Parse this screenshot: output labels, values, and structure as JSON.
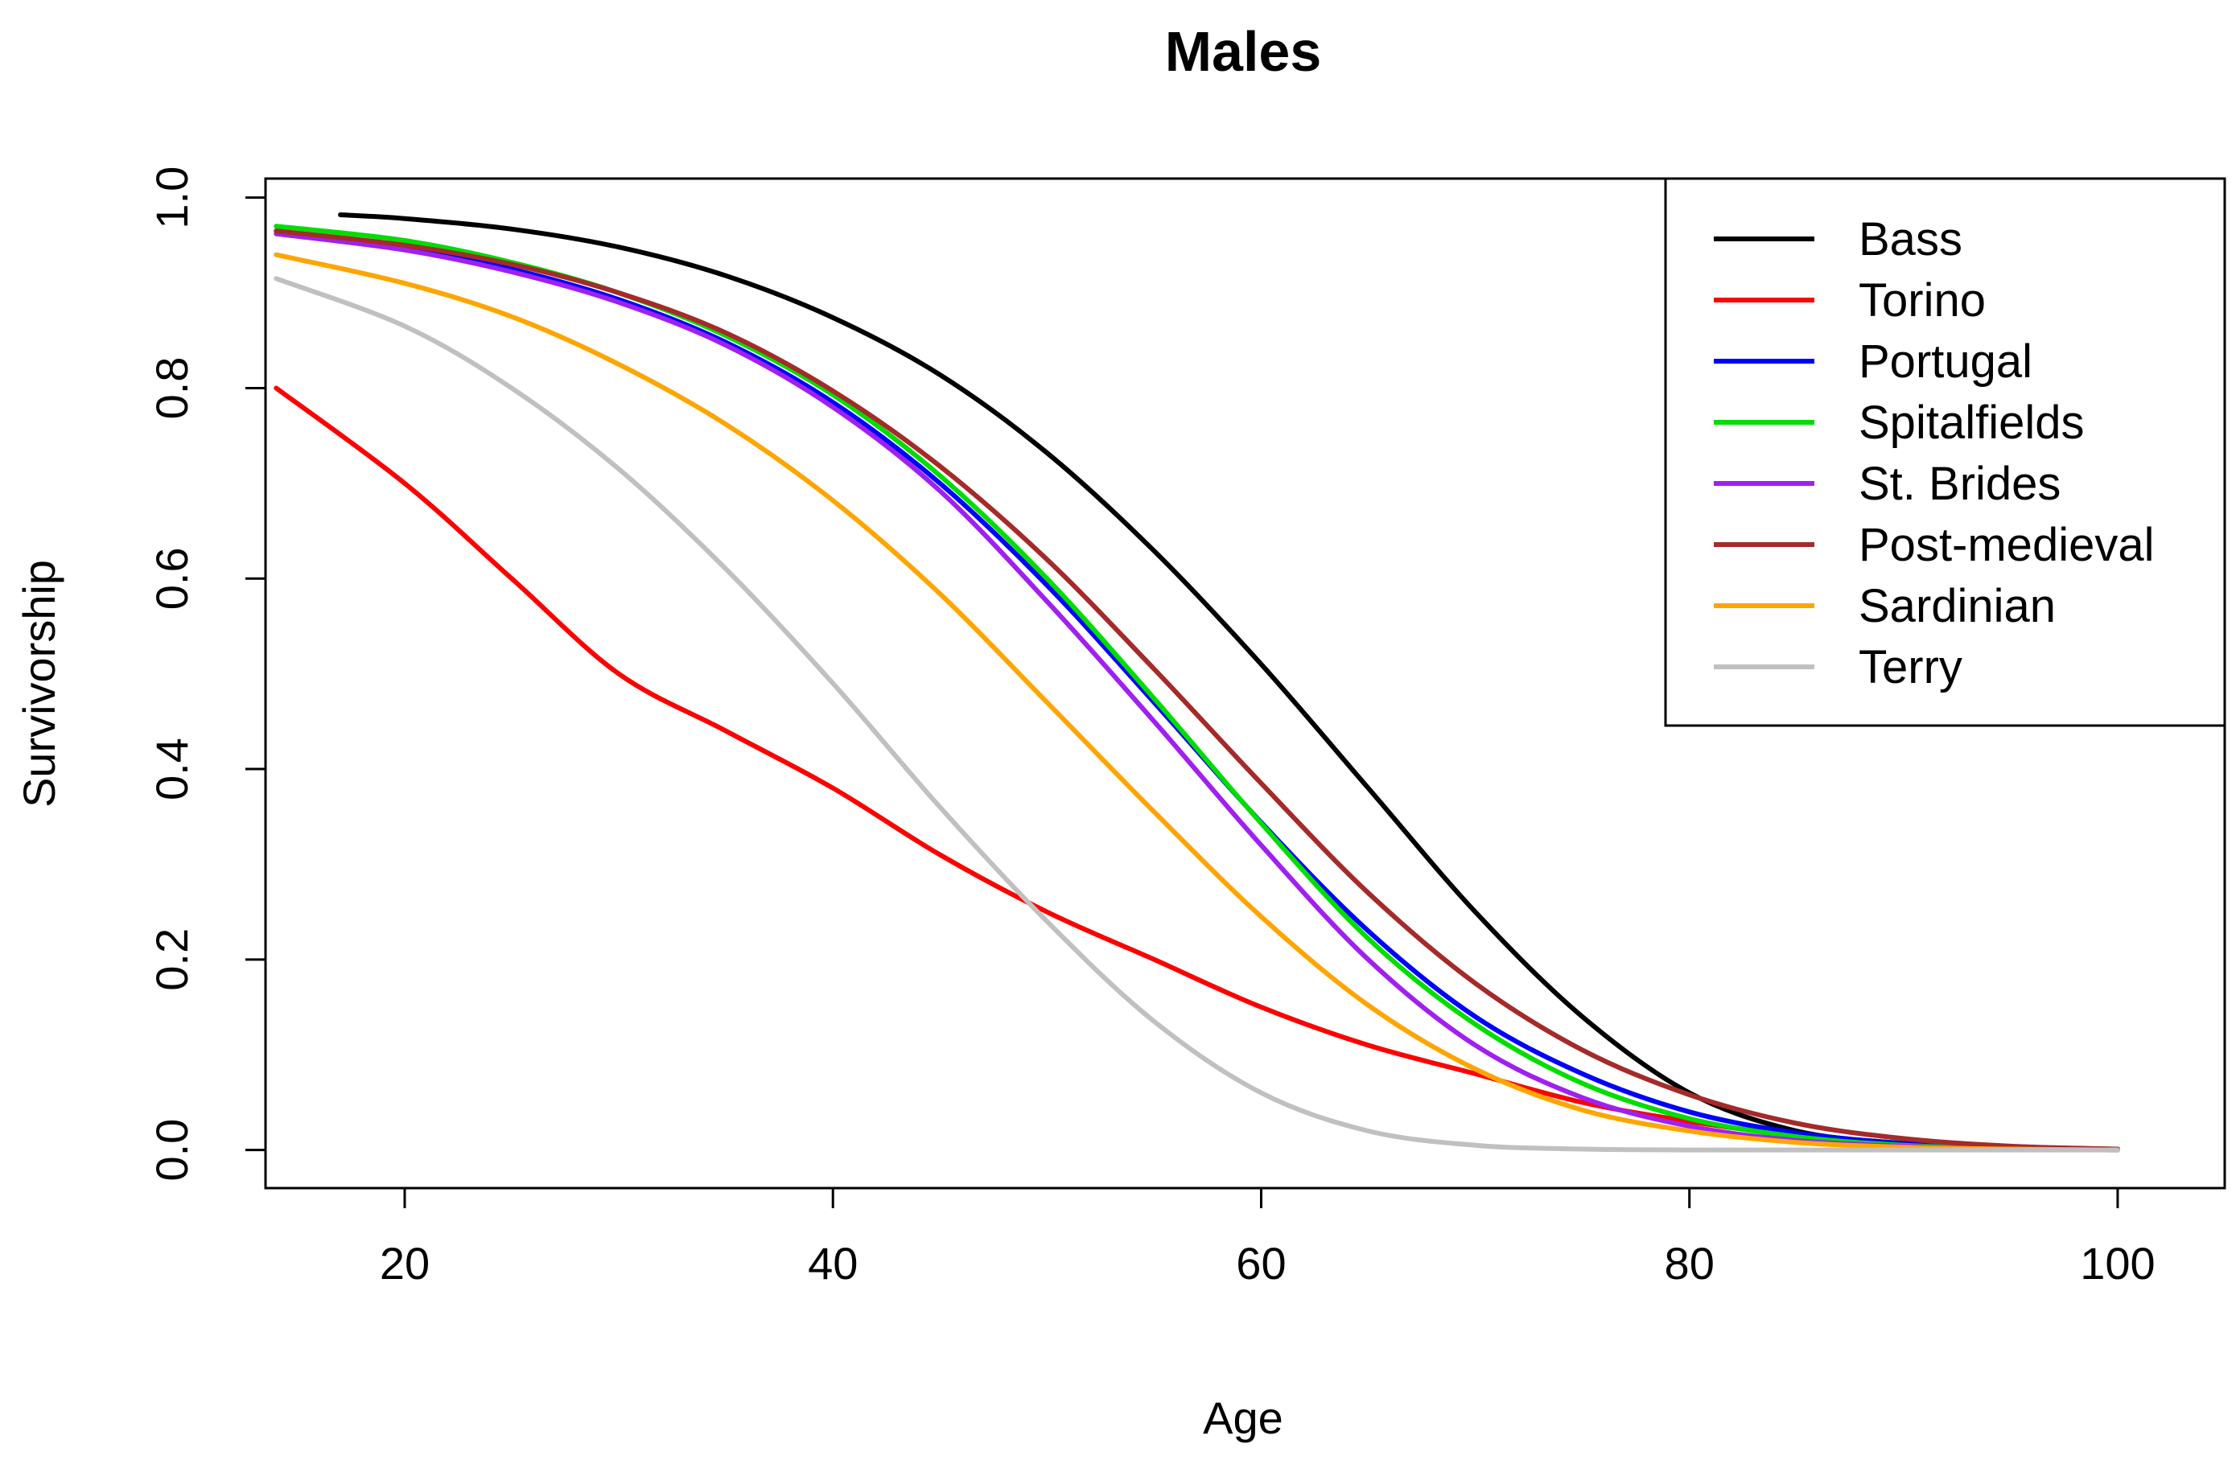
{
  "chart_data": {
    "type": "line",
    "title": "Males",
    "xlabel": "Age",
    "ylabel": "Survivorship",
    "xlim": [
      13.5,
      105
    ],
    "ylim": [
      -0.04,
      1.02
    ],
    "x_ticks": [
      {
        "value": 20,
        "label": "20"
      },
      {
        "value": 40,
        "label": "40"
      },
      {
        "value": 60,
        "label": "60"
      },
      {
        "value": 80,
        "label": "80"
      },
      {
        "value": 100,
        "label": "100"
      }
    ],
    "y_ticks": [
      {
        "value": 0.0,
        "label": "0.0"
      },
      {
        "value": 0.2,
        "label": "0.2"
      },
      {
        "value": 0.4,
        "label": "0.4"
      },
      {
        "value": 0.6,
        "label": "0.6"
      },
      {
        "value": 0.8,
        "label": "0.8"
      },
      {
        "value": 1.0,
        "label": "1.0"
      }
    ],
    "legend_position": "top-right",
    "series": [
      {
        "name": "Bass",
        "color": "#000000",
        "x": [
          17,
          20,
          25,
          30,
          35,
          40,
          45,
          50,
          55,
          60,
          65,
          70,
          75,
          80,
          85,
          90,
          95,
          100
        ],
        "y": [
          0.982,
          0.978,
          0.967,
          0.948,
          0.918,
          0.874,
          0.814,
          0.732,
          0.629,
          0.51,
          0.38,
          0.25,
          0.14,
          0.06,
          0.02,
          0.007,
          0.002,
          0.001
        ]
      },
      {
        "name": "Torino",
        "color": "#ff0000",
        "x": [
          14,
          20,
          25,
          30,
          35,
          40,
          45,
          50,
          55,
          60,
          65,
          70,
          75,
          80,
          85,
          90,
          95,
          100
        ],
        "y": [
          0.8,
          0.7,
          0.6,
          0.5,
          0.44,
          0.38,
          0.31,
          0.25,
          0.2,
          0.15,
          0.11,
          0.08,
          0.05,
          0.03,
          0.015,
          0.006,
          0.002,
          0.001
        ]
      },
      {
        "name": "Portugal",
        "color": "#0000ff",
        "x": [
          14,
          20,
          25,
          30,
          35,
          40,
          45,
          50,
          55,
          60,
          65,
          70,
          75,
          80,
          85,
          90,
          95,
          100
        ],
        "y": [
          0.965,
          0.948,
          0.925,
          0.893,
          0.848,
          0.785,
          0.7,
          0.593,
          0.47,
          0.344,
          0.23,
          0.14,
          0.08,
          0.04,
          0.018,
          0.007,
          0.002,
          0.001
        ]
      },
      {
        "name": "Spitalfields",
        "color": "#00dd00",
        "x": [
          14,
          20,
          25,
          30,
          35,
          40,
          45,
          50,
          55,
          60,
          65,
          70,
          75,
          80,
          85,
          90,
          95,
          100
        ],
        "y": [
          0.97,
          0.955,
          0.932,
          0.9,
          0.855,
          0.793,
          0.708,
          0.6,
          0.474,
          0.343,
          0.222,
          0.132,
          0.07,
          0.033,
          0.014,
          0.005,
          0.002,
          0.001
        ]
      },
      {
        "name": "St. Brides",
        "color": "#a020f0",
        "x": [
          14,
          20,
          25,
          30,
          35,
          40,
          45,
          50,
          55,
          60,
          65,
          70,
          75,
          80,
          85,
          90,
          95,
          100
        ],
        "y": [
          0.962,
          0.945,
          0.922,
          0.89,
          0.845,
          0.78,
          0.692,
          0.576,
          0.45,
          0.32,
          0.2,
          0.11,
          0.055,
          0.025,
          0.01,
          0.004,
          0.001,
          0.0
        ]
      },
      {
        "name": "Post-medieval",
        "color": "#a52a2a",
        "x": [
          14,
          20,
          25,
          30,
          35,
          40,
          45,
          50,
          55,
          60,
          65,
          70,
          75,
          80,
          85,
          90,
          95,
          100
        ],
        "y": [
          0.965,
          0.95,
          0.93,
          0.9,
          0.858,
          0.797,
          0.718,
          0.62,
          0.505,
          0.385,
          0.27,
          0.175,
          0.105,
          0.058,
          0.028,
          0.012,
          0.004,
          0.001
        ]
      },
      {
        "name": "Sardinian",
        "color": "#ffa500",
        "x": [
          14,
          20,
          25,
          30,
          35,
          40,
          45,
          50,
          55,
          60,
          65,
          70,
          75,
          80,
          85,
          90,
          95,
          100
        ],
        "y": [
          0.94,
          0.91,
          0.875,
          0.825,
          0.762,
          0.682,
          0.584,
          0.47,
          0.355,
          0.245,
          0.152,
          0.085,
          0.042,
          0.02,
          0.008,
          0.003,
          0.001,
          0.0
        ]
      },
      {
        "name": "Terry",
        "color": "#c0c0c0",
        "x": [
          14,
          20,
          25,
          30,
          35,
          40,
          45,
          50,
          55,
          60,
          65,
          70,
          75,
          80,
          85,
          90,
          95,
          100
        ],
        "y": [
          0.915,
          0.865,
          0.8,
          0.715,
          0.61,
          0.49,
          0.36,
          0.24,
          0.135,
          0.06,
          0.02,
          0.005,
          0.001,
          0.0,
          0.0,
          0.0,
          0.0,
          0.0
        ]
      }
    ]
  }
}
